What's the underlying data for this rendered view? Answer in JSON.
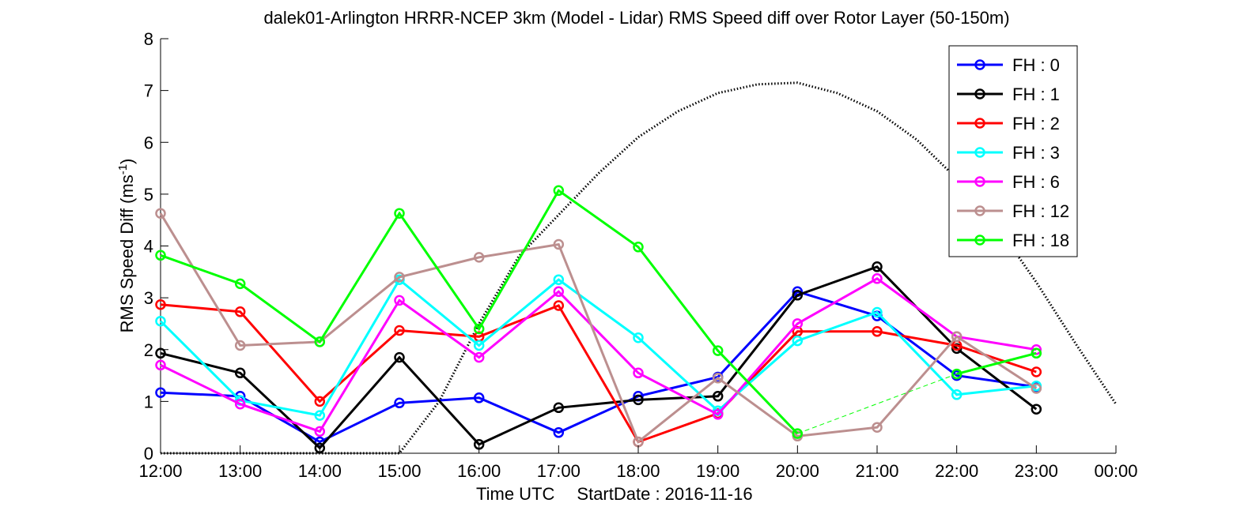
{
  "chart_data": {
    "type": "line",
    "title": "dalek01-Arlington HRRR-NCEP 3km (Model - Lidar) RMS Speed diff over Rotor Layer (50-150m)",
    "xlabel": "Time UTC",
    "start_date_label": "StartDate : 2016-11-16",
    "ylabel_base": "RMS Speed Diff (ms",
    "ylabel_sup": "-1",
    "ylabel_end": ")",
    "ylim": [
      0,
      8
    ],
    "yticks": [
      "0",
      "1",
      "2",
      "3",
      "4",
      "5",
      "6",
      "7",
      "8"
    ],
    "x_tick_labels": [
      "12:00",
      "13:00",
      "14:00",
      "15:00",
      "16:00",
      "17:00",
      "18:00",
      "19:00",
      "20:00",
      "21:00",
      "22:00",
      "23:00",
      "00:00"
    ],
    "xlim_hours": [
      12,
      24
    ],
    "grid": false,
    "legend_position": "top-right",
    "series": [
      {
        "name": "FH : 0",
        "color": "#0000ff",
        "x": [
          12,
          13,
          14,
          15,
          16,
          17,
          18,
          19,
          20,
          21,
          22,
          23
        ],
        "y": [
          1.17,
          1.1,
          0.22,
          0.97,
          1.07,
          0.4,
          1.1,
          1.47,
          3.12,
          2.65,
          1.5,
          1.28
        ]
      },
      {
        "name": "FH : 1",
        "color": "#000000",
        "x": [
          12,
          13,
          14,
          15,
          16,
          17,
          18,
          19,
          20,
          21,
          22,
          23
        ],
        "y": [
          1.93,
          1.55,
          0.1,
          1.85,
          0.17,
          0.88,
          1.03,
          1.1,
          3.05,
          3.6,
          2.02,
          0.85
        ]
      },
      {
        "name": "FH : 2",
        "color": "#ff0000",
        "x": [
          12,
          13,
          14,
          15,
          16,
          17,
          18,
          19,
          20,
          21,
          22,
          23
        ],
        "y": [
          2.87,
          2.73,
          1.0,
          2.37,
          2.25,
          2.85,
          0.22,
          0.77,
          2.35,
          2.35,
          2.08,
          1.57
        ]
      },
      {
        "name": "FH : 3",
        "color": "#00ffff",
        "x": [
          12,
          13,
          14,
          15,
          16,
          17,
          18,
          19,
          20,
          21,
          22,
          23
        ],
        "y": [
          2.55,
          1.02,
          0.73,
          3.35,
          2.08,
          3.35,
          2.23,
          0.82,
          2.17,
          2.72,
          1.13,
          1.3
        ]
      },
      {
        "name": "FH : 6",
        "color": "#ff00ff",
        "x": [
          12,
          13,
          14,
          15,
          16,
          17,
          18,
          19,
          20,
          21,
          22,
          23
        ],
        "y": [
          1.7,
          0.95,
          0.42,
          2.95,
          1.85,
          3.12,
          1.55,
          0.75,
          2.5,
          3.37,
          2.25,
          2.0
        ]
      },
      {
        "name": "FH : 12",
        "color": "#bc8f8f",
        "x": [
          12,
          13,
          14,
          15,
          16,
          17,
          18,
          19,
          20,
          21,
          22,
          23
        ],
        "y": [
          4.63,
          2.08,
          2.15,
          3.4,
          3.78,
          4.03,
          0.22,
          1.45,
          0.33,
          0.5,
          2.25,
          1.25
        ]
      },
      {
        "name": "FH : 18",
        "color": "#00ff00",
        "x": [
          12,
          13,
          14,
          15,
          16,
          17,
          18,
          19,
          20,
          22,
          23
        ],
        "y": [
          3.82,
          3.27,
          2.15,
          4.63,
          2.4,
          5.07,
          3.98,
          1.98,
          0.38,
          1.53,
          1.93
        ],
        "solid_segments": [
          [
            0,
            8
          ],
          [
            9,
            10
          ]
        ],
        "dashed_segments": [
          [
            8,
            9
          ]
        ]
      }
    ],
    "reference_curve": {
      "style": "dotted",
      "color": "#000000",
      "x": [
        12.0,
        12.5,
        13.0,
        13.5,
        14.0,
        14.5,
        15.0,
        15.5,
        16.0,
        16.5,
        17.0,
        17.5,
        18.0,
        18.5,
        19.0,
        19.5,
        20.0,
        20.5,
        21.0,
        21.5,
        22.0,
        22.5,
        23.0,
        23.5,
        24.0
      ],
      "y": [
        0,
        0,
        0,
        0,
        0,
        0,
        0,
        1.0,
        2.5,
        3.8,
        4.6,
        5.4,
        6.1,
        6.6,
        6.95,
        7.12,
        7.15,
        6.95,
        6.6,
        6.05,
        5.3,
        4.4,
        3.3,
        2.1,
        0.95
      ]
    }
  }
}
